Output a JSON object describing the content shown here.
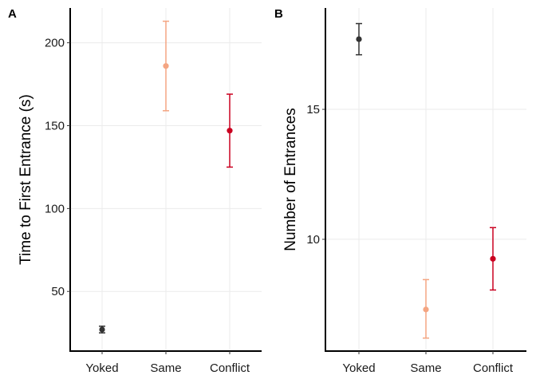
{
  "chart_data": [
    {
      "panel": "A",
      "type": "scatter",
      "title": "",
      "xlabel": "",
      "ylabel": "Time to First Entrance (s)",
      "categories": [
        "Yoked",
        "Same",
        "Conflict"
      ],
      "colors": [
        "#333333",
        "#f4a582",
        "#ca0020"
      ],
      "values": [
        27,
        186,
        147
      ],
      "error_low": [
        25,
        159,
        125
      ],
      "error_high": [
        29,
        213,
        169
      ],
      "ylim": [
        14,
        221
      ],
      "yticks": [
        50,
        100,
        150,
        200
      ],
      "grid": true,
      "legend": "none"
    },
    {
      "panel": "B",
      "type": "scatter",
      "title": "",
      "xlabel": "",
      "ylabel": "Number of Entrances",
      "categories": [
        "Yoked",
        "Same",
        "Conflict"
      ],
      "colors": [
        "#333333",
        "#f4a582",
        "#ca0020"
      ],
      "values": [
        17.7,
        7.3,
        9.25
      ],
      "error_low": [
        17.1,
        6.2,
        8.05
      ],
      "error_high": [
        18.3,
        8.45,
        10.45
      ],
      "ylim": [
        5.7,
        18.9
      ],
      "yticks": [
        10,
        15
      ],
      "grid": true,
      "legend": "none"
    }
  ]
}
